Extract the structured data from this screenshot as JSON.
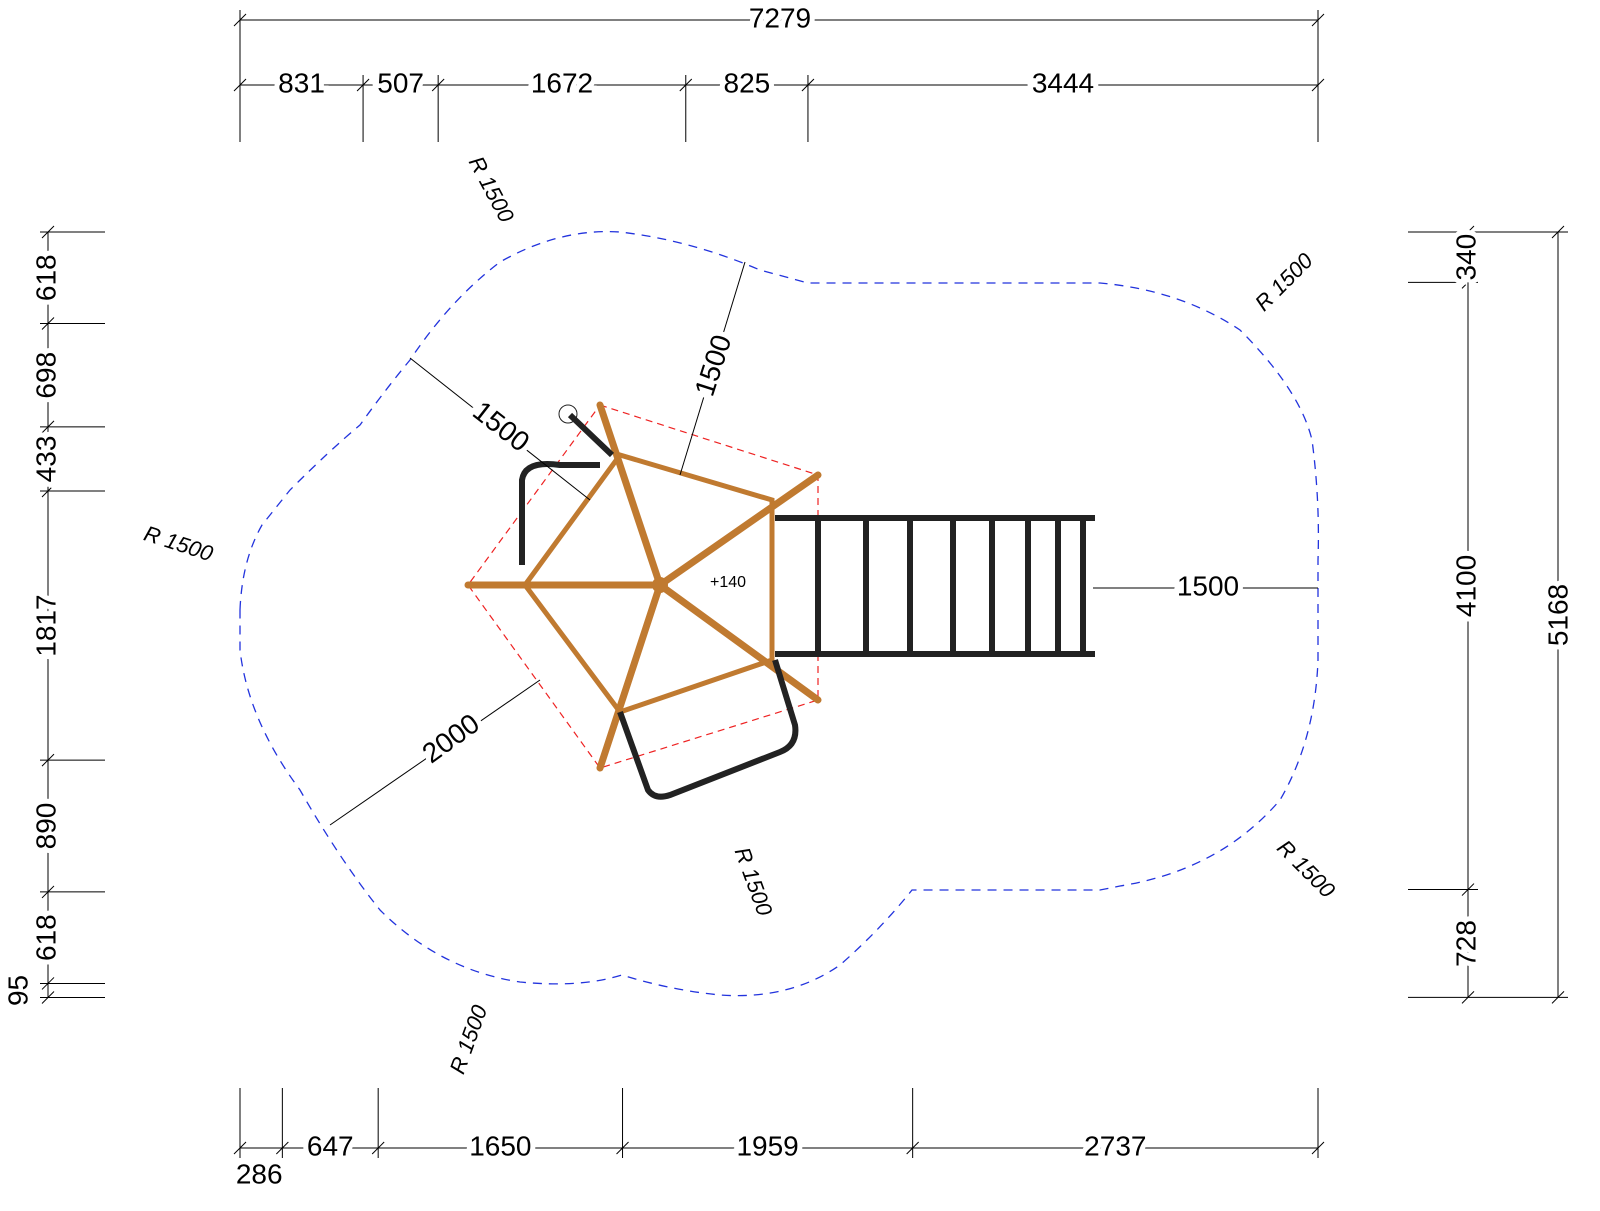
{
  "dimensions": {
    "top_overall": 7279,
    "top": [
      831,
      507,
      1672,
      825,
      3444
    ],
    "bottom": [
      286,
      647,
      1650,
      1959,
      2737
    ],
    "left": [
      618,
      698,
      433,
      1817,
      890,
      618,
      95
    ],
    "right": [
      340,
      4100,
      728
    ],
    "right_overall": 5168,
    "inner": [
      1500,
      1500,
      1500,
      2000
    ]
  },
  "radii": [
    "R 1500",
    "R 1500",
    "R 1500",
    "R 1500",
    "R 1500",
    "R 1500"
  ],
  "elevation": "+140"
}
